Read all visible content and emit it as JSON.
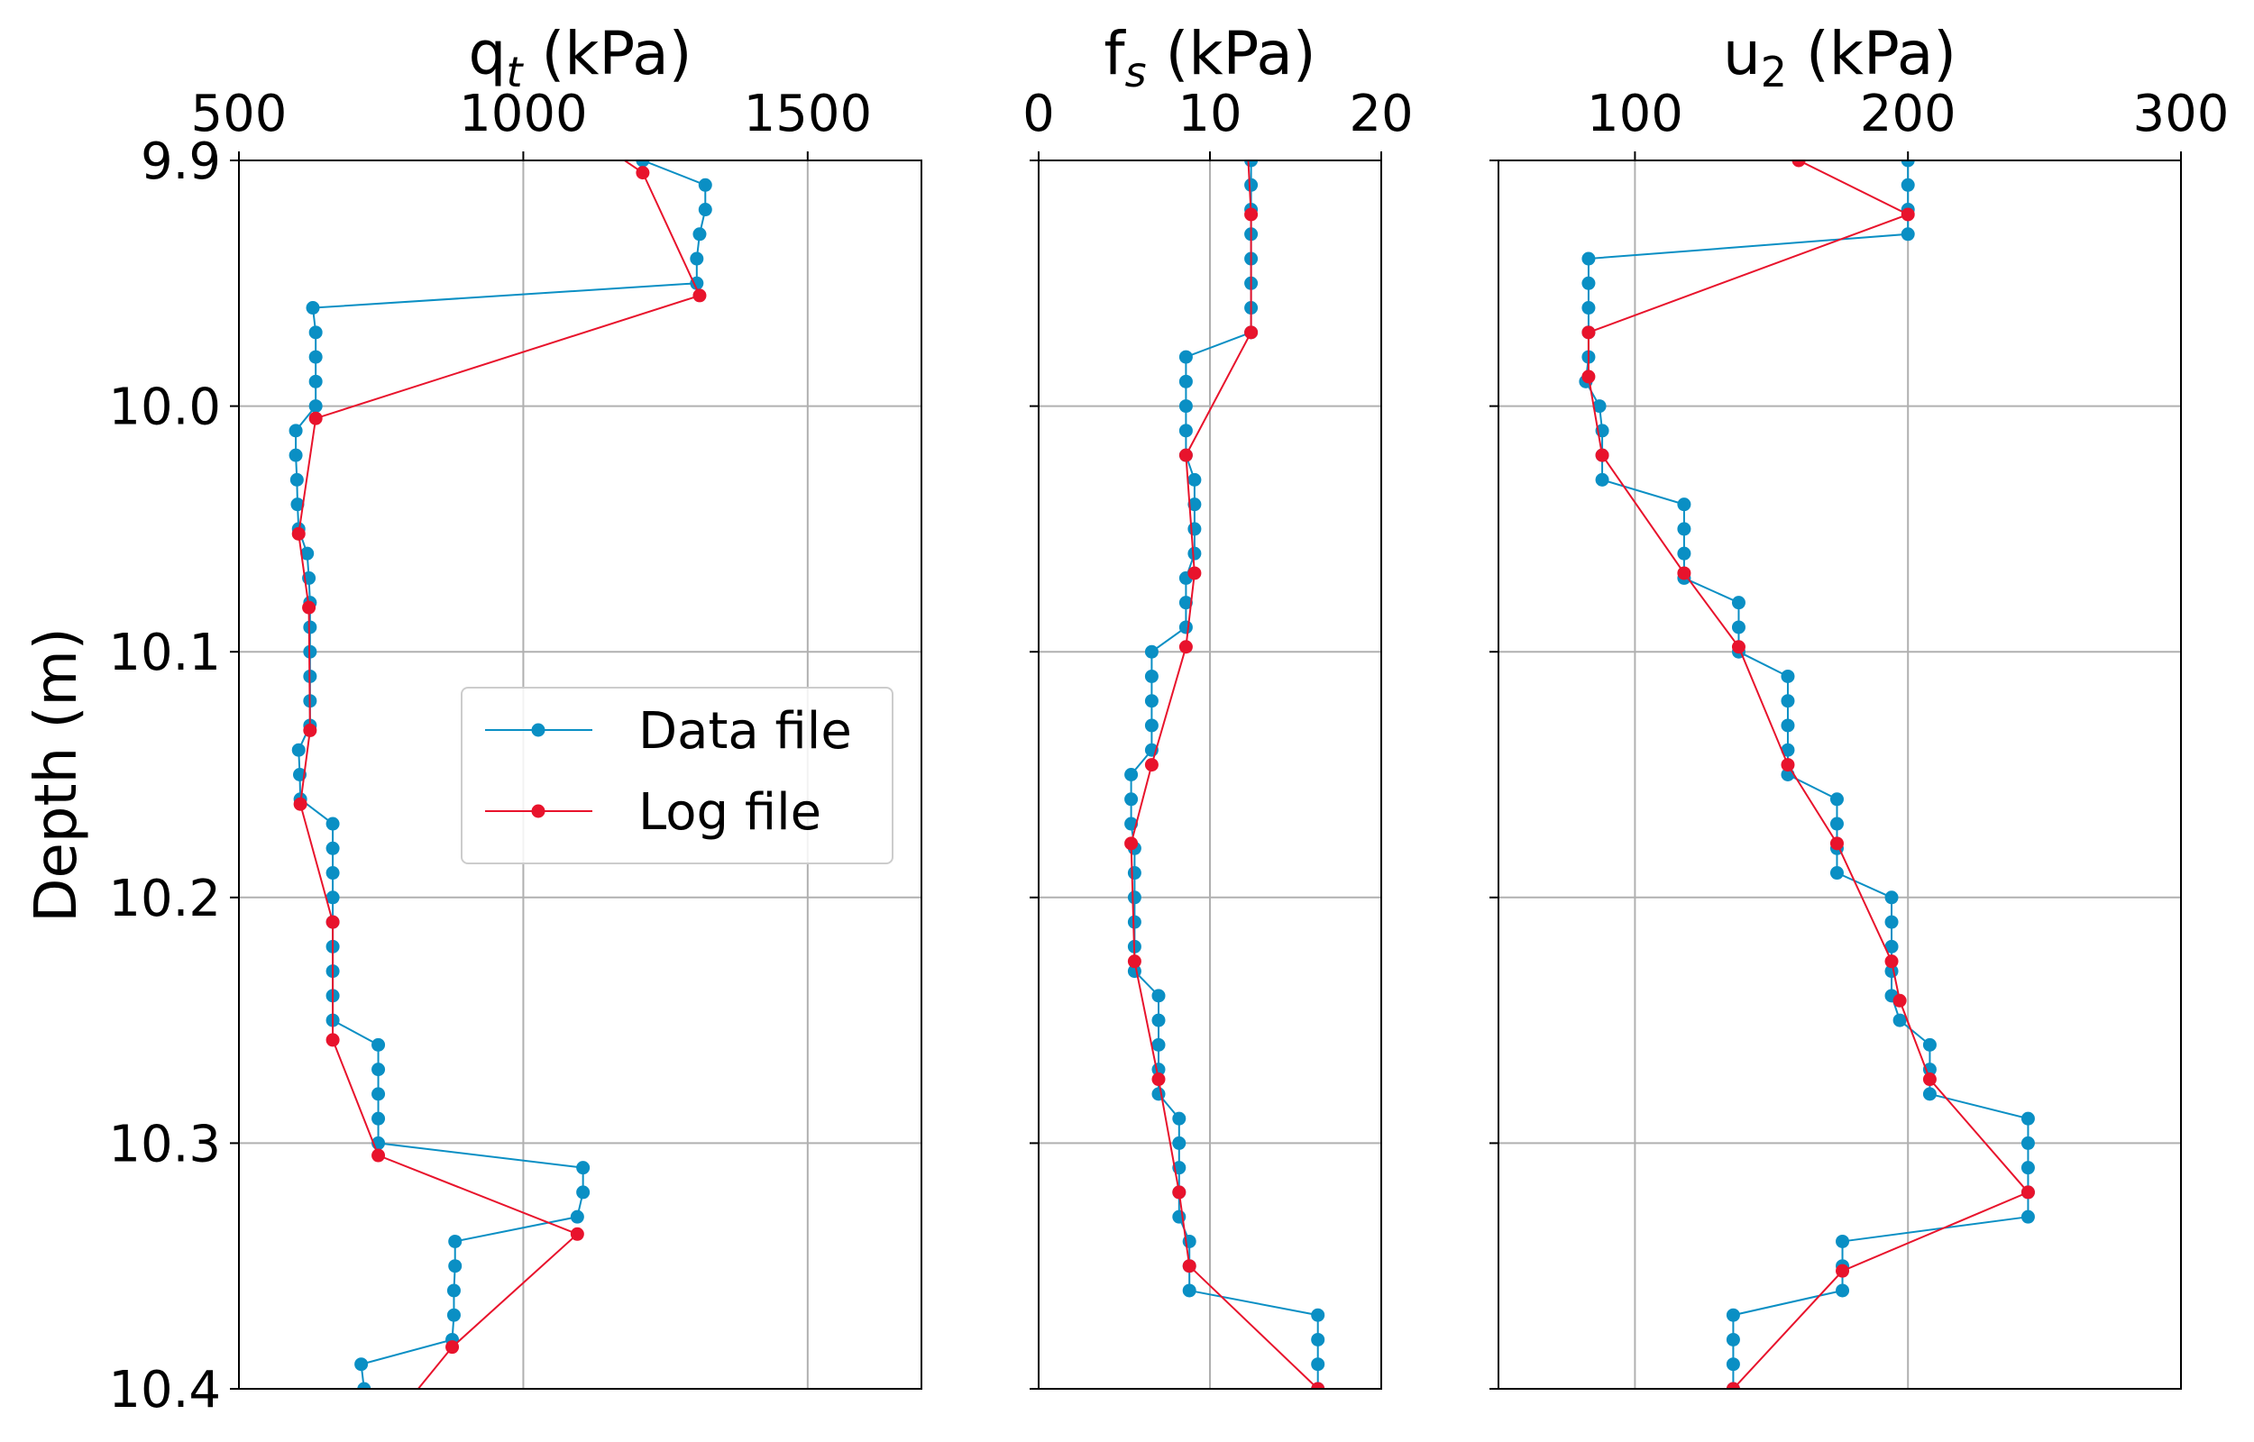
{
  "chart_data": [
    {
      "type": "line",
      "title": "q",
      "title_sub": "t",
      "title_sub_italic": true,
      "title_suffix": " (kPa)",
      "ylabel": "Depth (m)",
      "xlim": [
        500,
        1700
      ],
      "ylim": [
        10.4,
        9.9
      ],
      "xticks": [
        500,
        1000,
        1500
      ],
      "yticks": [
        9.9,
        10.0,
        10.1,
        10.2,
        10.3,
        10.4
      ],
      "ytick_labels": [
        "9.9",
        "10.0",
        "10.1",
        "10.2",
        "10.3",
        "10.4"
      ],
      "grid": true,
      "legend": {
        "position": "center-left",
        "entries": [
          "Data file",
          "Log file"
        ]
      },
      "series": [
        {
          "name": "Data file",
          "color": "#0a8fc4",
          "points": [
            [
              1100,
              9.89
            ],
            [
              1210,
              9.9
            ],
            [
              1320,
              9.91
            ],
            [
              1320,
              9.92
            ],
            [
              1310,
              9.93
            ],
            [
              1305,
              9.94
            ],
            [
              1305,
              9.95
            ],
            [
              630,
              9.96
            ],
            [
              635,
              9.97
            ],
            [
              635,
              9.98
            ],
            [
              635,
              9.99
            ],
            [
              635,
              10.0
            ],
            [
              600,
              10.01
            ],
            [
              600,
              10.02
            ],
            [
              602,
              10.03
            ],
            [
              603,
              10.04
            ],
            [
              605,
              10.05
            ],
            [
              620,
              10.06
            ],
            [
              623,
              10.07
            ],
            [
              625,
              10.08
            ],
            [
              625,
              10.09
            ],
            [
              625,
              10.1
            ],
            [
              625,
              10.11
            ],
            [
              625,
              10.12
            ],
            [
              625,
              10.13
            ],
            [
              605,
              10.14
            ],
            [
              607,
              10.15
            ],
            [
              608,
              10.16
            ],
            [
              665,
              10.17
            ],
            [
              665,
              10.18
            ],
            [
              665,
              10.19
            ],
            [
              665,
              10.2
            ],
            [
              665,
              10.21
            ],
            [
              665,
              10.22
            ],
            [
              665,
              10.23
            ],
            [
              665,
              10.24
            ],
            [
              665,
              10.25
            ],
            [
              745,
              10.26
            ],
            [
              745,
              10.27
            ],
            [
              745,
              10.28
            ],
            [
              745,
              10.29
            ],
            [
              745,
              10.3
            ],
            [
              1105,
              10.31
            ],
            [
              1105,
              10.32
            ],
            [
              1095,
              10.33
            ],
            [
              880,
              10.34
            ],
            [
              880,
              10.35
            ],
            [
              878,
              10.36
            ],
            [
              878,
              10.37
            ],
            [
              875,
              10.38
            ],
            [
              715,
              10.39
            ],
            [
              720,
              10.4
            ]
          ]
        },
        {
          "name": "Log file",
          "color": "#e8132c",
          "points": [
            [
              1050,
              9.88
            ],
            [
              1210,
              9.905
            ],
            [
              1310,
              9.955
            ],
            [
              635,
              10.005
            ],
            [
              605,
              10.052
            ],
            [
              623,
              10.082
            ],
            [
              625,
              10.132
            ],
            [
              608,
              10.162
            ],
            [
              665,
              10.21
            ],
            [
              665,
              10.258
            ],
            [
              745,
              10.305
            ],
            [
              1095,
              10.337
            ],
            [
              875,
              10.383
            ],
            [
              780,
              10.41
            ]
          ]
        }
      ]
    },
    {
      "type": "line",
      "title": "f",
      "title_sub": "s",
      "title_sub_italic": true,
      "title_suffix": " (kPa)",
      "xlim": [
        0,
        20
      ],
      "ylim": [
        10.4,
        9.9
      ],
      "xticks": [
        0,
        10,
        20
      ],
      "yticks": [
        9.9,
        10.0,
        10.1,
        10.2,
        10.3,
        10.4
      ],
      "grid": true,
      "series": [
        {
          "name": "Data file",
          "color": "#0a8fc4",
          "points": [
            [
              12.4,
              9.9
            ],
            [
              12.4,
              9.91
            ],
            [
              12.4,
              9.92
            ],
            [
              12.4,
              9.93
            ],
            [
              12.4,
              9.94
            ],
            [
              12.4,
              9.95
            ],
            [
              12.4,
              9.96
            ],
            [
              12.4,
              9.97
            ],
            [
              8.6,
              9.98
            ],
            [
              8.6,
              9.99
            ],
            [
              8.6,
              10.0
            ],
            [
              8.6,
              10.01
            ],
            [
              8.6,
              10.02
            ],
            [
              9.1,
              10.03
            ],
            [
              9.1,
              10.04
            ],
            [
              9.1,
              10.05
            ],
            [
              9.1,
              10.06
            ],
            [
              8.6,
              10.07
            ],
            [
              8.6,
              10.08
            ],
            [
              8.6,
              10.09
            ],
            [
              6.6,
              10.1
            ],
            [
              6.6,
              10.11
            ],
            [
              6.6,
              10.12
            ],
            [
              6.6,
              10.13
            ],
            [
              6.6,
              10.14
            ],
            [
              5.4,
              10.15
            ],
            [
              5.4,
              10.16
            ],
            [
              5.4,
              10.17
            ],
            [
              5.6,
              10.18
            ],
            [
              5.6,
              10.19
            ],
            [
              5.6,
              10.2
            ],
            [
              5.6,
              10.21
            ],
            [
              5.6,
              10.22
            ],
            [
              5.6,
              10.23
            ],
            [
              7.0,
              10.24
            ],
            [
              7.0,
              10.25
            ],
            [
              7.0,
              10.26
            ],
            [
              7.0,
              10.27
            ],
            [
              7.0,
              10.28
            ],
            [
              8.2,
              10.29
            ],
            [
              8.2,
              10.3
            ],
            [
              8.2,
              10.31
            ],
            [
              8.2,
              10.32
            ],
            [
              8.2,
              10.33
            ],
            [
              8.8,
              10.34
            ],
            [
              8.8,
              10.35
            ],
            [
              8.8,
              10.36
            ],
            [
              16.3,
              10.37
            ],
            [
              16.3,
              10.38
            ],
            [
              16.3,
              10.39
            ],
            [
              16.3,
              10.4
            ],
            [
              14.1,
              10.41
            ]
          ]
        },
        {
          "name": "Log file",
          "color": "#e8132c",
          "points": [
            [
              12.2,
              9.895
            ],
            [
              12.4,
              9.922
            ],
            [
              12.4,
              9.97
            ],
            [
              8.6,
              10.02
            ],
            [
              9.1,
              10.068
            ],
            [
              8.6,
              10.098
            ],
            [
              6.6,
              10.146
            ],
            [
              5.4,
              10.178
            ],
            [
              5.6,
              10.226
            ],
            [
              7.0,
              10.274
            ],
            [
              8.2,
              10.32
            ],
            [
              8.8,
              10.35
            ],
            [
              16.3,
              10.4
            ]
          ]
        }
      ]
    },
    {
      "type": "line",
      "title": "u",
      "title_sub": "2",
      "title_sub_italic": false,
      "title_suffix": " (kPa)",
      "xlim": [
        50,
        300
      ],
      "ylim": [
        10.4,
        9.9
      ],
      "xticks": [
        100,
        200,
        300
      ],
      "yticks": [
        9.9,
        10.0,
        10.1,
        10.2,
        10.3,
        10.4
      ],
      "grid": true,
      "series": [
        {
          "name": "Data file",
          "color": "#0a8fc4",
          "points": [
            [
              200,
              9.9
            ],
            [
              200,
              9.91
            ],
            [
              200,
              9.92
            ],
            [
              200,
              9.93
            ],
            [
              83,
              9.94
            ],
            [
              83,
              9.95
            ],
            [
              83,
              9.96
            ],
            [
              83,
              9.97
            ],
            [
              83,
              9.98
            ],
            [
              82,
              9.99
            ],
            [
              87,
              10.0
            ],
            [
              88,
              10.01
            ],
            [
              88,
              10.02
            ],
            [
              88,
              10.03
            ],
            [
              118,
              10.04
            ],
            [
              118,
              10.05
            ],
            [
              118,
              10.06
            ],
            [
              118,
              10.07
            ],
            [
              138,
              10.08
            ],
            [
              138,
              10.09
            ],
            [
              138,
              10.1
            ],
            [
              156,
              10.11
            ],
            [
              156,
              10.12
            ],
            [
              156,
              10.13
            ],
            [
              156,
              10.14
            ],
            [
              156,
              10.15
            ],
            [
              174,
              10.16
            ],
            [
              174,
              10.17
            ],
            [
              174,
              10.18
            ],
            [
              174,
              10.19
            ],
            [
              194,
              10.2
            ],
            [
              194,
              10.21
            ],
            [
              194,
              10.22
            ],
            [
              194,
              10.23
            ],
            [
              194,
              10.24
            ],
            [
              197,
              10.25
            ],
            [
              208,
              10.26
            ],
            [
              208,
              10.27
            ],
            [
              208,
              10.28
            ],
            [
              244,
              10.29
            ],
            [
              244,
              10.3
            ],
            [
              244,
              10.31
            ],
            [
              244,
              10.32
            ],
            [
              244,
              10.33
            ],
            [
              176,
              10.34
            ],
            [
              176,
              10.35
            ],
            [
              176,
              10.36
            ],
            [
              136,
              10.37
            ],
            [
              136,
              10.38
            ],
            [
              136,
              10.39
            ],
            [
              136,
              10.4
            ],
            [
              150,
              10.41
            ]
          ]
        },
        {
          "name": "Log file",
          "color": "#e8132c",
          "points": [
            [
              160,
              9.9
            ],
            [
              200,
              9.922
            ],
            [
              83,
              9.97
            ],
            [
              83,
              9.988
            ],
            [
              88,
              10.02
            ],
            [
              118,
              10.068
            ],
            [
              138,
              10.098
            ],
            [
              156,
              10.146
            ],
            [
              174,
              10.178
            ],
            [
              194,
              10.226
            ],
            [
              197,
              10.242
            ],
            [
              208,
              10.274
            ],
            [
              244,
              10.32
            ],
            [
              176,
              10.352
            ],
            [
              136,
              10.4
            ]
          ]
        }
      ]
    }
  ]
}
